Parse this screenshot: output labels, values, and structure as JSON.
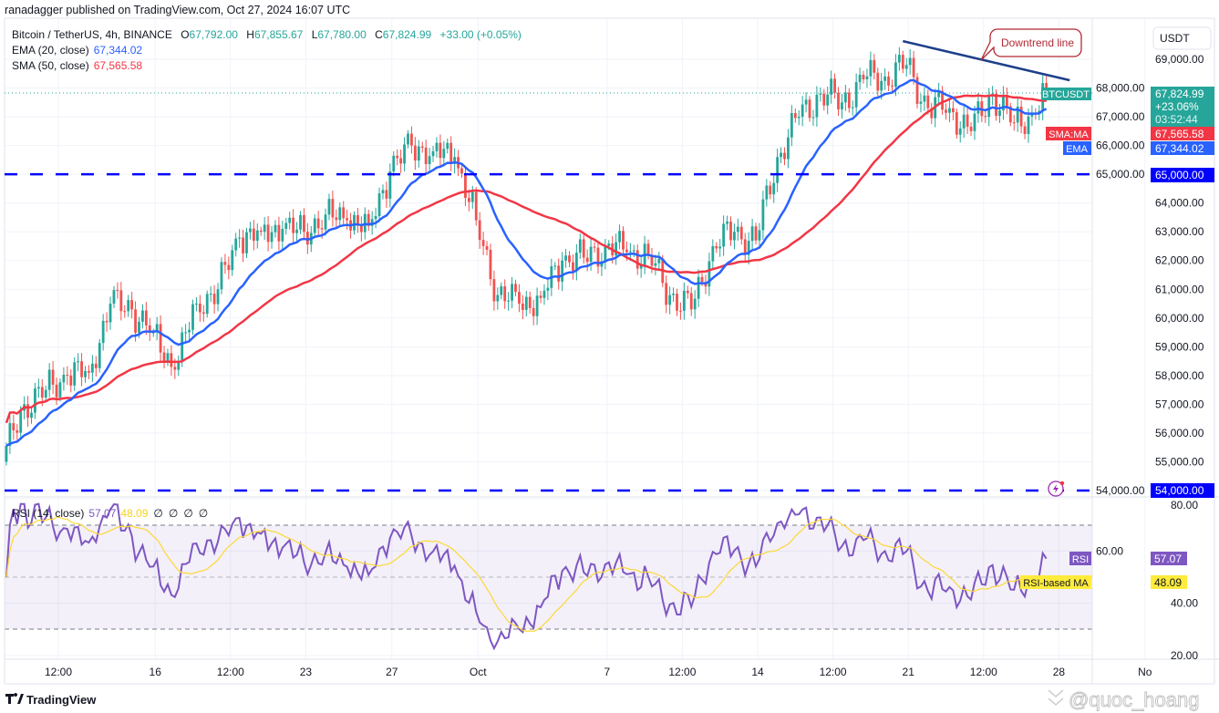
{
  "publisher_line": "ranadagger published on TradingView.com, Oct 27, 2024 16:07 UTC",
  "legend": {
    "symbol": "Bitcoin / TetherUS, 4h, BINANCE",
    "o_label": "O",
    "o": "67,792.00",
    "h_label": "H",
    "h": "67,855.67",
    "l_label": "L",
    "l": "67,780.00",
    "c_label": "C",
    "c": "67,824.99",
    "change": "+33.00 (+0.05%)",
    "ema_label": "EMA (20, close)",
    "ema_value": "67,344.02",
    "sma_label": "SMA (50, close)",
    "sma_value": "67,565.58"
  },
  "price_axis": {
    "currency": "USDT",
    "ticks": [
      "69,000.00",
      "68,000.00",
      "67,000.00",
      "66,000.00",
      "65,000.00",
      "64,000.00",
      "63,000.00",
      "62,000.00",
      "61,000.00",
      "60,000.00",
      "59,000.00",
      "58,000.00",
      "57,000.00",
      "56,000.00",
      "55,000.00",
      "54,000.00"
    ],
    "tick_values": [
      69000,
      68000,
      67000,
      66000,
      65000,
      64000,
      63000,
      62000,
      61000,
      60000,
      59000,
      58000,
      57000,
      56000,
      55000,
      54000
    ],
    "last_price_tag": {
      "symbol": "BTCUSDT",
      "price": "67,824.99",
      "change": "+23.06%",
      "countdown": "03:52:44"
    },
    "sma_tag": {
      "label": "SMA:MA",
      "value": "67,565.58"
    },
    "ema_tag": {
      "label": "EMA",
      "value": "67,344.02"
    },
    "level_65000": "65,000.00",
    "level_54000": "54,000.00"
  },
  "rsi": {
    "header_label": "RSI (14, close)",
    "value": "57.07",
    "ma_value": "48.09",
    "extra": [
      "∅",
      "∅",
      "∅",
      "∅"
    ],
    "ticks": [
      "80.00",
      "60.00",
      "40.00",
      "20.00"
    ],
    "tick_values": [
      80,
      60,
      40,
      20
    ],
    "tag_label": "RSI",
    "ma_tag_label": "RSI-based MA"
  },
  "time_axis": [
    {
      "label": "12:00",
      "date": "2024-09-11T12:00"
    },
    {
      "label": "16",
      "date": "2024-09-16T00:00"
    },
    {
      "label": "12:00",
      "date": "2024-09-19T12:00"
    },
    {
      "label": "23",
      "date": "2024-09-23T00:00"
    },
    {
      "label": "27",
      "date": "2024-09-27T00:00"
    },
    {
      "label": "Oct",
      "date": "2024-10-01T00:00"
    },
    {
      "label": "7",
      "date": "2024-10-07T00:00"
    },
    {
      "label": "12:00",
      "date": "2024-10-10T12:00"
    },
    {
      "label": "14",
      "date": "2024-10-14T00:00"
    },
    {
      "label": "12:00",
      "date": "2024-10-17T12:00"
    },
    {
      "label": "21",
      "date": "2024-10-21T00:00"
    },
    {
      "label": "12:00",
      "date": "2024-10-24T12:00"
    },
    {
      "label": "28",
      "date": "2024-10-28T00:00"
    },
    {
      "label": "No",
      "date": "2024-11-01T00:00"
    }
  ],
  "annotation": {
    "text": "Downtrend line",
    "color": "#b22833"
  },
  "footer": {
    "brand": "TradingView",
    "watermark": "@quoc_hoang"
  },
  "colors": {
    "up": "#26a69a",
    "down": "#ef5350",
    "ema": "#2962ff",
    "sma": "#f23645",
    "rsi": "#7e57c2",
    "rsi_ma": "#fdd835",
    "level": "#0000ff",
    "trendline": "#1e3f8a"
  },
  "chart_data": {
    "type": "candlestick",
    "symbol": "BTCUSDT",
    "interval": "4h",
    "exchange": "BINANCE",
    "ylim": [
      54000,
      69500
    ],
    "daily_close": [
      {
        "date": "2024-09-09",
        "close": 57000
      },
      {
        "date": "2024-09-10",
        "close": 57500
      },
      {
        "date": "2024-09-11",
        "close": 58000
      },
      {
        "date": "2024-09-12",
        "close": 58100
      },
      {
        "date": "2024-09-13",
        "close": 60500
      },
      {
        "date": "2024-09-14",
        "close": 60300
      },
      {
        "date": "2024-09-15",
        "close": 59500
      },
      {
        "date": "2024-09-16",
        "close": 58200
      },
      {
        "date": "2024-09-17",
        "close": 60500
      },
      {
        "date": "2024-09-18",
        "close": 61000
      },
      {
        "date": "2024-09-19",
        "close": 62800
      },
      {
        "date": "2024-09-20",
        "close": 63000
      },
      {
        "date": "2024-09-21",
        "close": 63100
      },
      {
        "date": "2024-09-22",
        "close": 63000
      },
      {
        "date": "2024-09-23",
        "close": 63600
      },
      {
        "date": "2024-09-24",
        "close": 63400
      },
      {
        "date": "2024-09-25",
        "close": 63200
      },
      {
        "date": "2024-09-26",
        "close": 65100
      },
      {
        "date": "2024-09-27",
        "close": 66000
      },
      {
        "date": "2024-09-28",
        "close": 65800
      },
      {
        "date": "2024-09-29",
        "close": 65600
      },
      {
        "date": "2024-09-30",
        "close": 63400
      },
      {
        "date": "2024-10-01",
        "close": 60800
      },
      {
        "date": "2024-10-02",
        "close": 60500
      },
      {
        "date": "2024-10-03",
        "close": 60700
      },
      {
        "date": "2024-10-04",
        "close": 62000
      },
      {
        "date": "2024-10-05",
        "close": 62100
      },
      {
        "date": "2024-10-06",
        "close": 62500
      },
      {
        "date": "2024-10-07",
        "close": 62300
      },
      {
        "date": "2024-10-08",
        "close": 62200
      },
      {
        "date": "2024-10-09",
        "close": 60800
      },
      {
        "date": "2024-10-10",
        "close": 60300
      },
      {
        "date": "2024-10-11",
        "close": 62500
      },
      {
        "date": "2024-10-12",
        "close": 63000
      },
      {
        "date": "2024-10-13",
        "close": 62700
      },
      {
        "date": "2024-10-14",
        "close": 65600
      },
      {
        "date": "2024-10-15",
        "close": 67000
      },
      {
        "date": "2024-10-16",
        "close": 67800
      },
      {
        "date": "2024-10-17",
        "close": 67500
      },
      {
        "date": "2024-10-18",
        "close": 68300
      },
      {
        "date": "2024-10-19",
        "close": 68400
      },
      {
        "date": "2024-10-20",
        "close": 68800
      },
      {
        "date": "2024-10-21",
        "close": 67300
      },
      {
        "date": "2024-10-22",
        "close": 67300
      },
      {
        "date": "2024-10-23",
        "close": 66500
      },
      {
        "date": "2024-10-24",
        "close": 67800
      },
      {
        "date": "2024-10-25",
        "close": 66800
      },
      {
        "date": "2024-10-26",
        "close": 67100
      },
      {
        "date": "2024-10-27",
        "close": 67824.99
      }
    ],
    "indicators": [
      "EMA 20",
      "SMA 50",
      "RSI 14",
      "RSI-based MA"
    ],
    "horizontal_levels": [
      65000,
      54000
    ],
    "trendline": {
      "start": {
        "date": "2024-10-20T18:00",
        "price": 69630
      },
      "end": {
        "date": "2024-10-28T12:00",
        "price": 68270
      }
    },
    "rsi_bands": [
      70,
      30
    ],
    "rsi_ylim": [
      20,
      80
    ]
  }
}
